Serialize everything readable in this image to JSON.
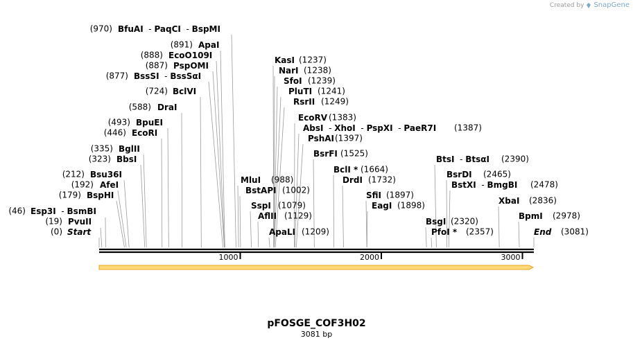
{
  "branding": {
    "created_by": "Created by",
    "app_name": "SnapGene"
  },
  "plasmid": {
    "name": "pFOSGE_COF3H02",
    "length_label": "3081 bp",
    "length_bp": 3081
  },
  "colors": {
    "backbone": "#000000",
    "feature_arrow": "#ffd97a",
    "feature_arrow_edge": "#e8a420",
    "leader": "#9a9a9a"
  },
  "ruler": {
    "ticks": [
      {
        "bp": 1000,
        "label": "1000"
      },
      {
        "bp": 2000,
        "label": "2000"
      },
      {
        "bp": 3000,
        "label": "3000"
      }
    ]
  },
  "sites": [
    {
      "id": "start",
      "pos": "(0)",
      "bp": 0,
      "names": [
        "Start"
      ],
      "italic": true
    },
    {
      "id": "pvuii",
      "pos": "(19)",
      "bp": 19,
      "names": [
        "PvuII"
      ]
    },
    {
      "id": "esp3i",
      "pos": "(46)",
      "bp": 46,
      "names": [
        "Esp3I",
        "BsmBI"
      ]
    },
    {
      "id": "bsphi",
      "pos": "(179)",
      "bp": 179,
      "names": [
        "BspHI"
      ]
    },
    {
      "id": "afei",
      "pos": "(192)",
      "bp": 192,
      "names": [
        "AfeI"
      ]
    },
    {
      "id": "bsu36i",
      "pos": "(212)",
      "bp": 212,
      "names": [
        "Bsu36I"
      ]
    },
    {
      "id": "bbsi",
      "pos": "(323)",
      "bp": 323,
      "names": [
        "BbsI"
      ]
    },
    {
      "id": "bglii",
      "pos": "(335)",
      "bp": 335,
      "names": [
        "BglII"
      ]
    },
    {
      "id": "ecori",
      "pos": "(446)",
      "bp": 446,
      "names": [
        "EcoRI"
      ]
    },
    {
      "id": "bpuei",
      "pos": "(493)",
      "bp": 493,
      "names": [
        "BpuEI"
      ]
    },
    {
      "id": "drai",
      "pos": "(588)",
      "bp": 588,
      "names": [
        "DraI"
      ]
    },
    {
      "id": "bclvi",
      "pos": "(724)",
      "bp": 724,
      "names": [
        "BclVI"
      ]
    },
    {
      "id": "bsssi",
      "pos": "(877)",
      "bp": 877,
      "names": [
        "BssSI",
        "BssSαI"
      ]
    },
    {
      "id": "pspomi",
      "pos": "(887)",
      "bp": 887,
      "names": [
        "PspOMI"
      ]
    },
    {
      "id": "ecoo109i",
      "pos": "(888)",
      "bp": 888,
      "names": [
        "EcoO109I"
      ]
    },
    {
      "id": "apai",
      "pos": "(891)",
      "bp": 891,
      "names": [
        "ApaI"
      ]
    },
    {
      "id": "bfuai",
      "pos": "(970)",
      "bp": 970,
      "names": [
        "BfuAI",
        "PaqCI",
        "BspMI"
      ]
    },
    {
      "id": "mlui",
      "pos": "(988)",
      "bp": 988,
      "names": [
        "MluI"
      ]
    },
    {
      "id": "bstapi",
      "pos": "(1002)",
      "bp": 1002,
      "names": [
        "BstAPI"
      ]
    },
    {
      "id": "sspi",
      "pos": "(1079)",
      "bp": 1079,
      "names": [
        "SspI"
      ]
    },
    {
      "id": "aflii",
      "pos": "(1129)",
      "bp": 1129,
      "names": [
        "AflII"
      ]
    },
    {
      "id": "apali",
      "pos": "(1209)",
      "bp": 1209,
      "names": [
        "ApaLI"
      ]
    },
    {
      "id": "kasi",
      "pos": "(1237)",
      "bp": 1237,
      "names": [
        "KasI"
      ]
    },
    {
      "id": "nari",
      "pos": "(1238)",
      "bp": 1238,
      "names": [
        "NarI"
      ]
    },
    {
      "id": "sfoi",
      "pos": "(1239)",
      "bp": 1239,
      "names": [
        "SfoI"
      ]
    },
    {
      "id": "pluti",
      "pos": "(1241)",
      "bp": 1241,
      "names": [
        "PluTI"
      ]
    },
    {
      "id": "rsrii",
      "pos": "(1249)",
      "bp": 1249,
      "names": [
        "RsrII"
      ]
    },
    {
      "id": "ecorv",
      "pos": "(1383)",
      "bp": 1383,
      "names": [
        "EcoRV"
      ]
    },
    {
      "id": "absi",
      "pos": "(1387)",
      "bp": 1387,
      "names": [
        "AbsI",
        "XhoI",
        "PspXI",
        "PaeR7I"
      ]
    },
    {
      "id": "pshai",
      "pos": "(1397)",
      "bp": 1397,
      "names": [
        "PshAI"
      ]
    },
    {
      "id": "bsrfi",
      "pos": "(1525)",
      "bp": 1525,
      "names": [
        "BsrFI"
      ]
    },
    {
      "id": "bcli",
      "pos": "(1664)",
      "bp": 1664,
      "names": [
        "BclI *"
      ]
    },
    {
      "id": "drdi",
      "pos": "(1732)",
      "bp": 1732,
      "names": [
        "DrdI"
      ]
    },
    {
      "id": "sfii",
      "pos": "(1897)",
      "bp": 1897,
      "names": [
        "SfiI"
      ]
    },
    {
      "id": "eagi",
      "pos": "(1898)",
      "bp": 1898,
      "names": [
        "EagI"
      ]
    },
    {
      "id": "bsgi",
      "pos": "(2320)",
      "bp": 2320,
      "names": [
        "BsgI"
      ]
    },
    {
      "id": "pfoi",
      "pos": "(2357)",
      "bp": 2357,
      "names": [
        "PfoI *"
      ]
    },
    {
      "id": "btsi",
      "pos": "(2390)",
      "bp": 2390,
      "names": [
        "BtsI",
        "BtsαI"
      ]
    },
    {
      "id": "bsrdi",
      "pos": "(2465)",
      "bp": 2465,
      "names": [
        "BsrDI"
      ]
    },
    {
      "id": "bstxi",
      "pos": "(2478)",
      "bp": 2478,
      "names": [
        "BstXI",
        "BmgBI"
      ]
    },
    {
      "id": "xbai",
      "pos": "(2836)",
      "bp": 2836,
      "names": [
        "XbaI"
      ]
    },
    {
      "id": "bpmi",
      "pos": "(2978)",
      "bp": 2978,
      "names": [
        "BpmI"
      ]
    },
    {
      "id": "end",
      "pos": "(3081)",
      "bp": 3081,
      "names": [
        "End"
      ],
      "italic": true
    }
  ]
}
